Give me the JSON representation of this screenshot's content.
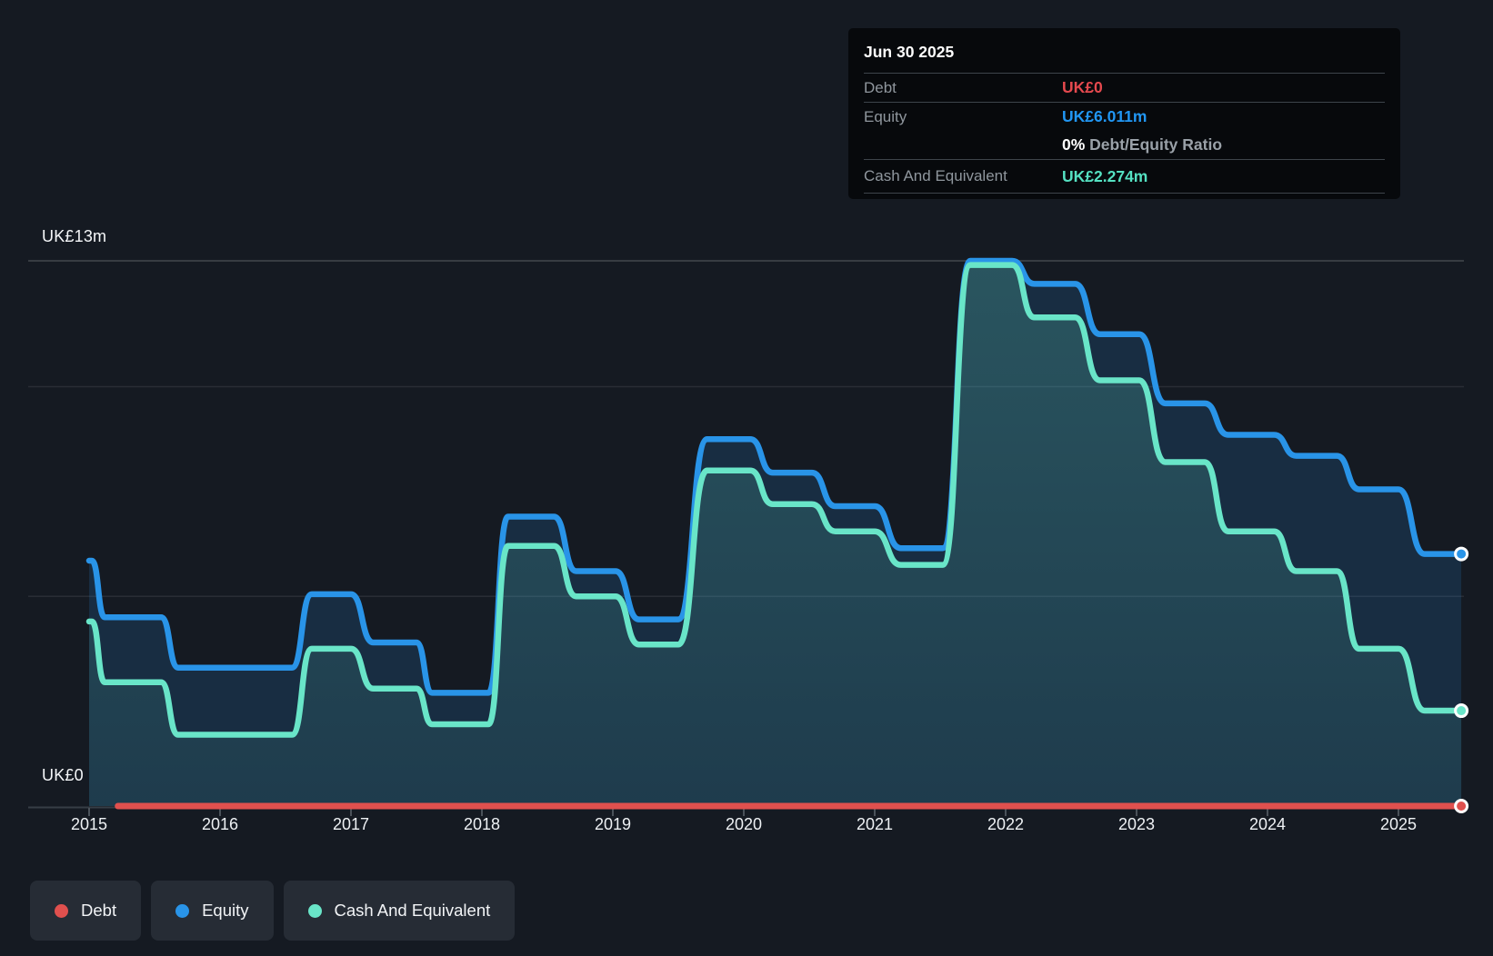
{
  "colors": {
    "debt": "#e0504e",
    "equity": "#2994e8",
    "cash": "#69e5c8",
    "debt_value_text": "#e5494e",
    "equity_value_text": "#2196f3",
    "cash_value_text": "#55e1c2"
  },
  "tooltip": {
    "date": "Jun 30 2025",
    "debt_label": "Debt",
    "debt_value": "UK£0",
    "equity_label": "Equity",
    "equity_value": "UK£6.011m",
    "ratio_value": "0%",
    "ratio_label": "Debt/Equity Ratio",
    "cash_label": "Cash And Equivalent",
    "cash_value": "UK£2.274m"
  },
  "legend": {
    "items": [
      {
        "id": "debt",
        "label": "Debt"
      },
      {
        "id": "equity",
        "label": "Equity"
      },
      {
        "id": "cash",
        "label": "Cash And Equivalent"
      }
    ]
  },
  "chart_data": {
    "type": "area",
    "title": "",
    "xlabel": "",
    "ylabel": "",
    "x_ticks": [
      2015,
      2016,
      2017,
      2018,
      2019,
      2020,
      2021,
      2022,
      2023,
      2024,
      2025
    ],
    "xlim": [
      2014.95,
      2025.5
    ],
    "ylim": [
      0,
      13
    ],
    "unit": "UK£m",
    "y_gridlines": [
      {
        "value": 13,
        "label": "UK£13m",
        "strong": true
      },
      {
        "value": 10,
        "label": "",
        "strong": false
      },
      {
        "value": 5,
        "label": "",
        "strong": false
      },
      {
        "value": 0,
        "label": "UK£0",
        "strong": false
      }
    ],
    "series": [
      {
        "id": "equity",
        "name": "Equity",
        "segments": [
          [
            2015.0,
            2015.02,
            5.85
          ],
          [
            2015.12,
            2015.55,
            4.5
          ],
          [
            2015.68,
            2016.55,
            3.3
          ],
          [
            2016.7,
            2017.0,
            5.05
          ],
          [
            2017.17,
            2017.5,
            3.9
          ],
          [
            2017.62,
            2018.05,
            2.7
          ],
          [
            2018.2,
            2018.55,
            6.9
          ],
          [
            2018.72,
            2019.02,
            5.6
          ],
          [
            2019.2,
            2019.5,
            4.45
          ],
          [
            2019.72,
            2020.05,
            8.75
          ],
          [
            2020.22,
            2020.52,
            7.95
          ],
          [
            2020.7,
            2021.0,
            7.15
          ],
          [
            2021.2,
            2021.52,
            6.15
          ],
          [
            2021.73,
            2022.05,
            13.0
          ],
          [
            2022.22,
            2022.53,
            12.45
          ],
          [
            2022.72,
            2023.02,
            11.25
          ],
          [
            2023.22,
            2023.52,
            9.6
          ],
          [
            2023.7,
            2024.05,
            8.85
          ],
          [
            2024.22,
            2024.53,
            8.35
          ],
          [
            2024.7,
            2025.0,
            7.55
          ],
          [
            2025.2,
            2025.48,
            6.011
          ]
        ]
      },
      {
        "id": "cash",
        "name": "Cash And Equivalent",
        "segments": [
          [
            2015.0,
            2015.02,
            4.4
          ],
          [
            2015.12,
            2015.55,
            2.95
          ],
          [
            2015.68,
            2016.55,
            1.7
          ],
          [
            2016.7,
            2017.0,
            3.75
          ],
          [
            2017.17,
            2017.5,
            2.8
          ],
          [
            2017.62,
            2018.05,
            1.95
          ],
          [
            2018.2,
            2018.55,
            6.2
          ],
          [
            2018.72,
            2019.02,
            5.0
          ],
          [
            2019.2,
            2019.5,
            3.85
          ],
          [
            2019.72,
            2020.05,
            8.0
          ],
          [
            2020.22,
            2020.52,
            7.2
          ],
          [
            2020.7,
            2021.0,
            6.55
          ],
          [
            2021.2,
            2021.52,
            5.75
          ],
          [
            2021.73,
            2022.05,
            12.9
          ],
          [
            2022.22,
            2022.53,
            11.65
          ],
          [
            2022.72,
            2023.02,
            10.15
          ],
          [
            2023.22,
            2023.52,
            8.2
          ],
          [
            2023.7,
            2024.05,
            6.55
          ],
          [
            2024.22,
            2024.53,
            5.6
          ],
          [
            2024.7,
            2025.0,
            3.75
          ],
          [
            2025.2,
            2025.48,
            2.274
          ]
        ]
      },
      {
        "id": "debt",
        "name": "Debt",
        "segments": [
          [
            2015.22,
            2025.48,
            0
          ]
        ]
      }
    ]
  }
}
